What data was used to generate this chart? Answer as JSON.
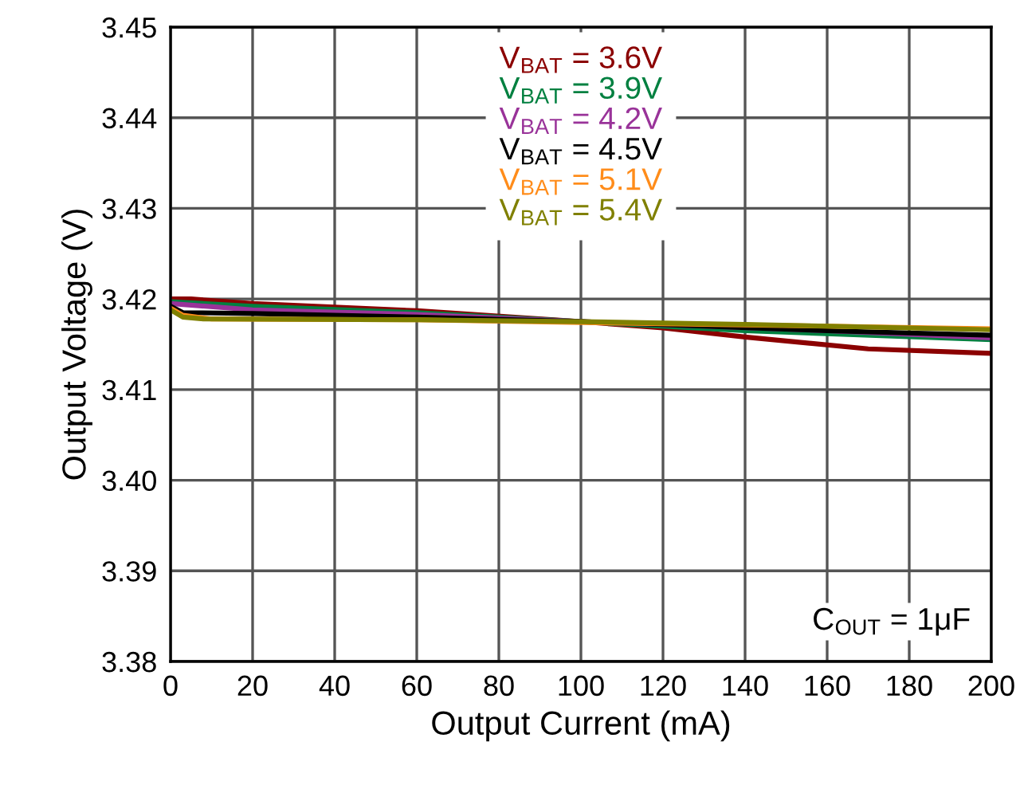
{
  "chart_data": {
    "type": "line",
    "xlabel": "Output Current (mA)",
    "ylabel": "Output Voltage (V)",
    "xlim": [
      0,
      200
    ],
    "xticks": [
      0,
      20,
      40,
      60,
      80,
      100,
      120,
      140,
      160,
      180,
      200
    ],
    "ylim": [
      3.38,
      3.45
    ],
    "yticks": [
      3.38,
      3.39,
      {
        "value": 3.4,
        "label": "3.40"
      },
      3.41,
      3.42,
      3.43,
      3.44,
      3.45
    ],
    "grid": true,
    "legend": "top",
    "marker": "none",
    "line_style": "solid",
    "annotations": [
      "C$_{OUT}$ = 1μF"
    ],
    "series": [
      {
        "name": "V$_{BAT}$ = 3.6V",
        "color": "#8b0000",
        "x": [
          0,
          5,
          20,
          60,
          100,
          120,
          140,
          170,
          200
        ],
        "values": [
          3.42,
          3.42,
          3.4195,
          3.4187,
          3.4175,
          3.4168,
          3.4158,
          3.4145,
          3.414
        ]
      },
      {
        "name": "V$_{BAT}$ = 3.9V",
        "color": "#008040",
        "x": [
          0,
          20,
          60,
          100,
          140,
          200
        ],
        "values": [
          3.4197,
          3.4192,
          3.4185,
          3.4175,
          3.4165,
          3.4155
        ]
      },
      {
        "name": "V$_{BAT}$ = 4.2V",
        "color": "#993399",
        "x": [
          0,
          20,
          60,
          100,
          160,
          200
        ],
        "values": [
          3.4195,
          3.4188,
          3.4183,
          3.4175,
          3.4165,
          3.4157
        ]
      },
      {
        "name": "V$_{BAT}$ = 4.5V",
        "color": "#000000",
        "x": [
          0,
          3,
          20,
          60,
          100,
          160,
          200
        ],
        "values": [
          3.4192,
          3.4185,
          3.4184,
          3.418,
          3.4175,
          3.4165,
          3.416
        ]
      },
      {
        "name": "V$_{BAT}$ = 5.1V",
        "color": "#ff8c1a",
        "x": [
          0,
          3,
          10,
          60,
          100,
          160,
          200
        ],
        "values": [
          3.419,
          3.4182,
          3.4178,
          3.4177,
          3.4174,
          3.417,
          3.4167
        ]
      },
      {
        "name": "V$_{BAT}$ = 5.4V",
        "color": "#808000",
        "x": [
          0,
          3,
          8,
          60,
          100,
          140,
          200
        ],
        "values": [
          3.4188,
          3.418,
          3.4178,
          3.4177,
          3.4175,
          3.4172,
          3.4166
        ]
      }
    ]
  }
}
